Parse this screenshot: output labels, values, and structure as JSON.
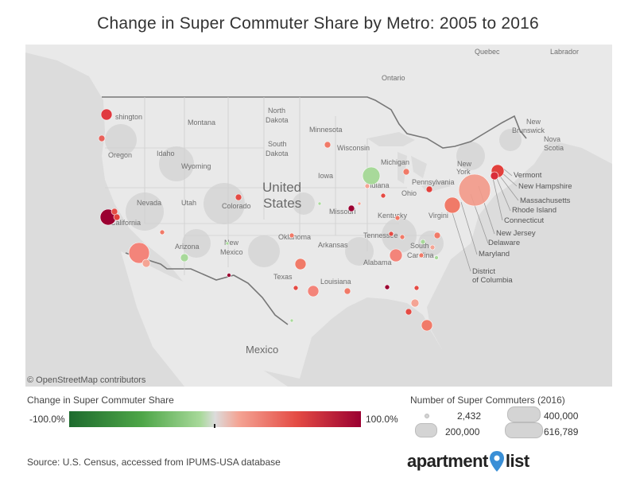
{
  "title": "Change in Super Commuter Share by Metro: 2005 to 2016",
  "map": {
    "attribution": "© OpenStreetMap contributors",
    "labels": {
      "country_us_line1": "United",
      "country_us_line2": "States",
      "mexico": "Mexico",
      "quebec": "Quebec",
      "labrador": "Labrador",
      "ontario": "Ontario",
      "new_brunswick_1": "New",
      "new_brunswick_2": "Brunswick",
      "nova_scotia_1": "Nova",
      "nova_scotia_2": "Scotia",
      "washington": "shington",
      "oregon": "Oregon",
      "idaho": "Idaho",
      "montana": "Montana",
      "wyoming": "Wyoming",
      "north_dakota_1": "North",
      "north_dakota_2": "Dakota",
      "south_dakota_1": "South",
      "south_dakota_2": "Dakota",
      "minnesota": "Minnesota",
      "wisconsin": "Wisconsin",
      "michigan": "Michigan",
      "nevada": "Nevada",
      "utah": "Utah",
      "colorado": "Colorado",
      "california": "California",
      "iowa": "Iowa",
      "missouri": "Missouri",
      "indiana": "Indiana",
      "ohio": "Ohio",
      "pennsylvania": "Pennsylvania",
      "new_york_1": "New",
      "new_york_2": "York",
      "kentucky": "Kentucky",
      "virginia": "Virgini",
      "arizona": "Arizona",
      "new_mexico_1": "New",
      "new_mexico_2": "Mexico",
      "oklahoma": "Oklahoma",
      "arkansas": "Arkansas",
      "tennessee": "Tennessee",
      "south_carolina_1": "South",
      "south_carolina_2": "Carolina",
      "alabama": "Alabama",
      "texas": "Texas",
      "louisiana": "Louisiana"
    },
    "east_labels": {
      "vermont": "Vermont",
      "new_hampshire": "New Hampshire",
      "massachusetts": "Massachusetts",
      "rhode_island": "Rhode Island",
      "connecticut": "Connecticut",
      "new_jersey": "New Jersey",
      "delaware": "Delaware",
      "maryland": "Maryland",
      "dc_1": "District",
      "dc_2": "of Columbia"
    }
  },
  "legend": {
    "color_title": "Change in Super Commuter Share",
    "min_label": "-100.0%",
    "max_label": "100.0%",
    "size_title": "Number of Super Commuters (2016)",
    "sizes": [
      "2,432",
      "200,000",
      "400,000",
      "616,789"
    ]
  },
  "source": "Source: U.S. Census, accessed from IPUMS-USA database",
  "brand": {
    "part1": "apartment",
    "part2": "list"
  },
  "colors": {
    "map_bg": "#dcdcdc",
    "land": "#e8e8e8",
    "neg_strong": "#1e6b2e",
    "neg_light": "#a8d99a",
    "pos_light": "#f4a494",
    "pos_mid": "#e44b44",
    "pos_strong": "#9b0031"
  }
}
